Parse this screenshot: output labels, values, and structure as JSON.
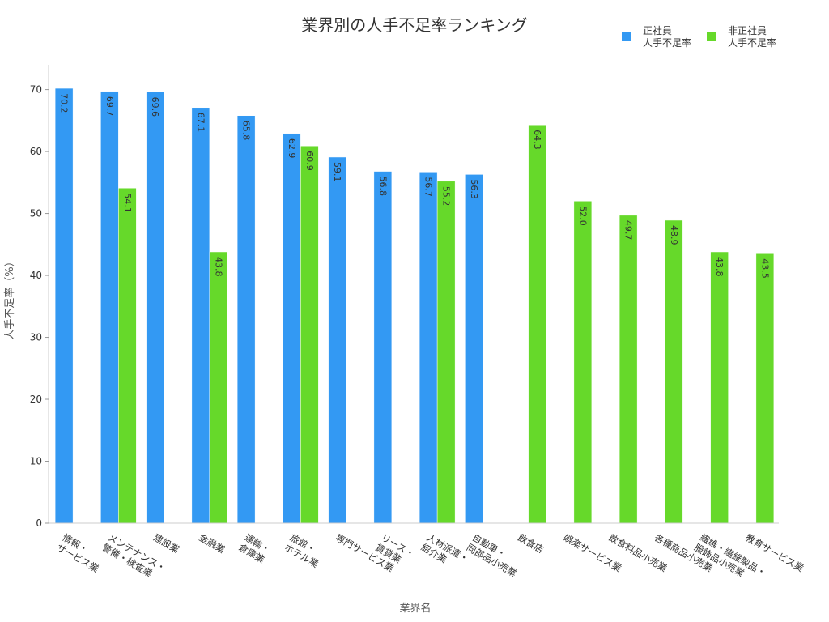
{
  "chart_data": {
    "type": "bar",
    "title": "業界別の人手不足率ランキング",
    "xlabel": "業界名",
    "ylabel": "人手不足率（%）",
    "ylim": [
      0,
      74
    ],
    "yticks": [
      0,
      10,
      20,
      30,
      40,
      50,
      60,
      70
    ],
    "legend_position": "top-right",
    "grid": false,
    "categories": [
      [
        "情報・",
        "サービス業"
      ],
      [
        "メンテナンス・",
        "警備・検査業"
      ],
      [
        "建設業"
      ],
      [
        "金融業"
      ],
      [
        "運輸・",
        "倉庫業"
      ],
      [
        "旅館・",
        "ホテル業"
      ],
      [
        "専門サービス業"
      ],
      [
        "リース・",
        "賃貸業"
      ],
      [
        "人材派遣・",
        "紹介業"
      ],
      [
        "自動車・",
        "同部品小売業"
      ],
      [
        "飲食店"
      ],
      [
        "娯楽サービス業"
      ],
      [
        "飲食料品小売業"
      ],
      [
        "各種商品小売業"
      ],
      [
        "繊維・繊維製品・",
        "服飾品小売業"
      ],
      [
        "教育サービス業"
      ]
    ],
    "series": [
      {
        "name": [
          "正社員",
          "人手不足率"
        ],
        "color": "#3399f3",
        "values": [
          70.2,
          69.7,
          69.6,
          67.1,
          65.8,
          62.9,
          59.1,
          56.8,
          56.7,
          56.3,
          null,
          null,
          null,
          null,
          null,
          null
        ],
        "value_labels": [
          "70.2",
          "69.7",
          "69.6",
          "67.1",
          "65.8",
          "62.9",
          "59.1",
          "56.8",
          "56.7",
          "56.3",
          "",
          "",
          "",
          "",
          "",
          ""
        ]
      },
      {
        "name": [
          "非正社員",
          "人手不足率"
        ],
        "color": "#66d92a",
        "values": [
          null,
          54.1,
          null,
          43.8,
          null,
          60.9,
          null,
          null,
          55.2,
          null,
          64.3,
          52.0,
          49.7,
          48.9,
          43.8,
          43.5
        ],
        "value_labels": [
          "",
          "54.1",
          "",
          "43.8",
          "",
          "60.9",
          "",
          "",
          "55.2",
          "",
          "64.3",
          "52.0",
          "49.7",
          "48.9",
          "43.8",
          "43.5"
        ]
      }
    ]
  }
}
